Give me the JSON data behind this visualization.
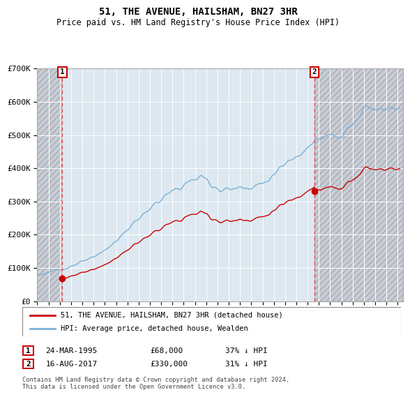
{
  "title": "51, THE AVENUE, HAILSHAM, BN27 3HR",
  "subtitle": "Price paid vs. HM Land Registry's House Price Index (HPI)",
  "ylim": [
    0,
    700000
  ],
  "yticks": [
    0,
    100000,
    200000,
    300000,
    400000,
    500000,
    600000,
    700000
  ],
  "ytick_labels": [
    "£0",
    "£100K",
    "£200K",
    "£300K",
    "£400K",
    "£500K",
    "£600K",
    "£700K"
  ],
  "xlim_start": 1993.0,
  "xlim_end": 2025.5,
  "sale1_date": 1995.23,
  "sale1_price": 68000,
  "sale2_date": 2017.62,
  "sale2_price": 330000,
  "hpi_color": "#7ab0d8",
  "price_color": "#cc0000",
  "vline_color": "#dd4444",
  "legend_entry1": "51, THE AVENUE, HAILSHAM, BN27 3HR (detached house)",
  "legend_entry2": "HPI: Average price, detached house, Wealden",
  "annotation1_date": "24-MAR-1995",
  "annotation1_price": "£68,000",
  "annotation1_hpi": "37% ↓ HPI",
  "annotation2_date": "16-AUG-2017",
  "annotation2_price": "£330,000",
  "annotation2_hpi": "31% ↓ HPI",
  "footer": "Contains HM Land Registry data © Crown copyright and database right 2024.\nThis data is licensed under the Open Government Licence v3.0.",
  "plot_bg_color": "#dde8f0",
  "hatch_face_color": "#c8cdd8"
}
